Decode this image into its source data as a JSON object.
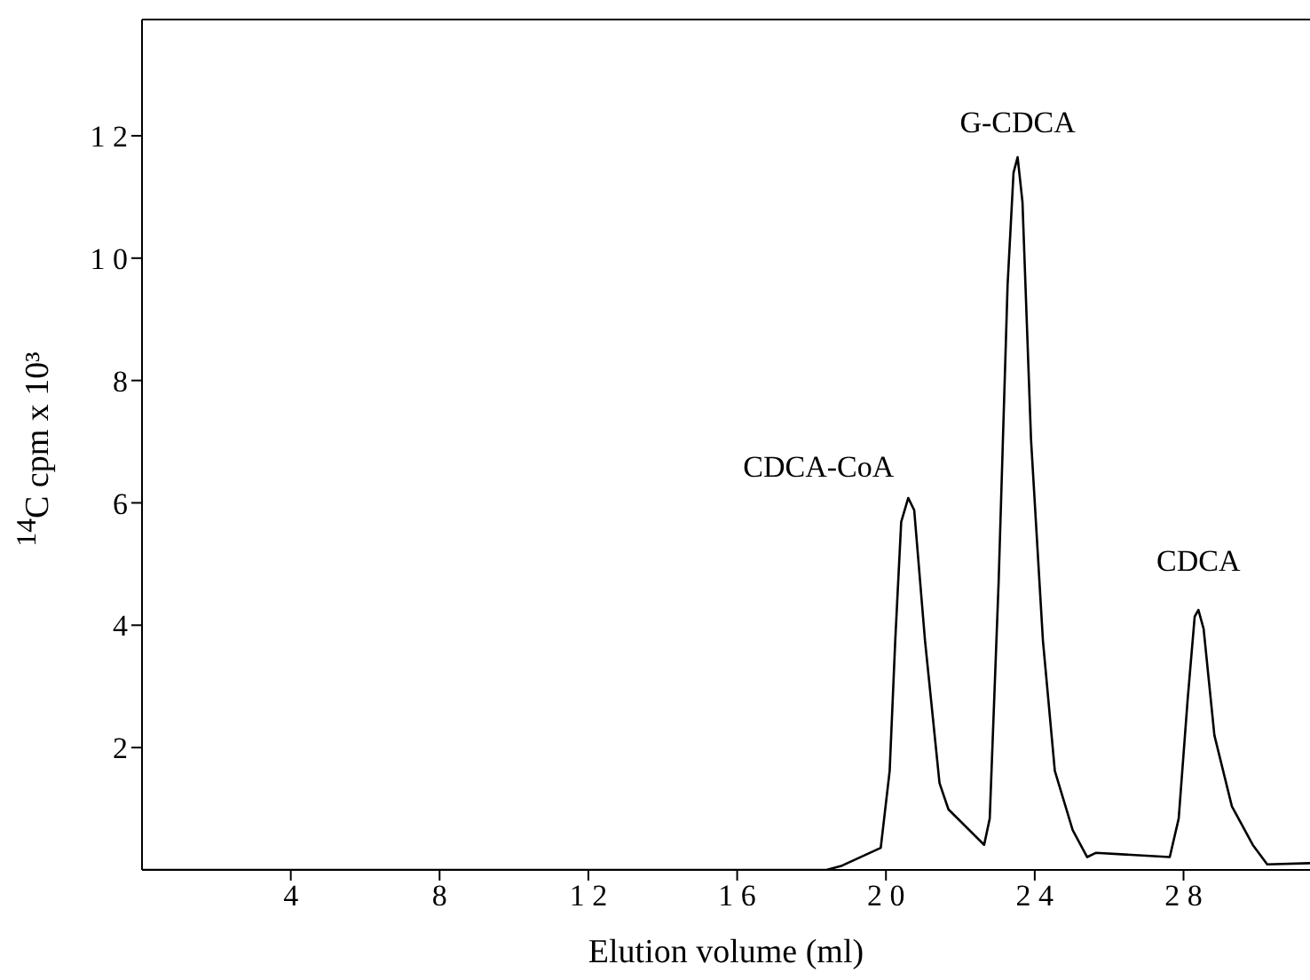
{
  "chart_data": {
    "type": "line",
    "xlabel": "Elution volume (ml)",
    "ylabel": "$^{14}$C cpm x 10³",
    "x": [
      0,
      18.4,
      18.82,
      19.86,
      20.1,
      20.25,
      20.41,
      20.6,
      20.76,
      21.05,
      21.44,
      21.68,
      22.64,
      22.79,
      23.03,
      23.27,
      23.43,
      23.54,
      23.67,
      23.9,
      24.22,
      24.54,
      25.02,
      25.41,
      25.65,
      27.63,
      27.87,
      28.11,
      28.3,
      28.4,
      28.54,
      28.83,
      29.3,
      29.86,
      30.25,
      31.4
    ],
    "series": [
      {
        "color": "#000000",
        "values": [
          0,
          0,
          0.07,
          0.36,
          1.62,
          3.75,
          5.69,
          6.08,
          5.88,
          3.75,
          1.42,
          0.99,
          0.41,
          0.84,
          4.72,
          9.56,
          11.4,
          11.65,
          10.92,
          7.04,
          3.75,
          1.62,
          0.65,
          0.21,
          0.28,
          0.21,
          0.84,
          2.78,
          4.14,
          4.25,
          3.94,
          2.2,
          1.04,
          0.41,
          0.09,
          0.11
        ]
      }
    ],
    "xlim": [
      0,
      31.4
    ],
    "xticks": [
      4,
      8,
      12,
      16,
      20,
      24,
      28
    ],
    "ylim": [
      0,
      13.9
    ],
    "yticks": [
      2,
      4,
      6,
      8,
      10,
      12
    ],
    "annotations": [
      {
        "text": "CDCA-CoA",
        "x": 20.6,
        "y": 6.08
      },
      {
        "text": "G-CDCA",
        "x": 23.54,
        "y": 11.65
      },
      {
        "text": "CDCA",
        "x": 28.4,
        "y": 4.25
      }
    ],
    "grid": false,
    "legend": false,
    "marker": "none",
    "line_style": "solid"
  }
}
